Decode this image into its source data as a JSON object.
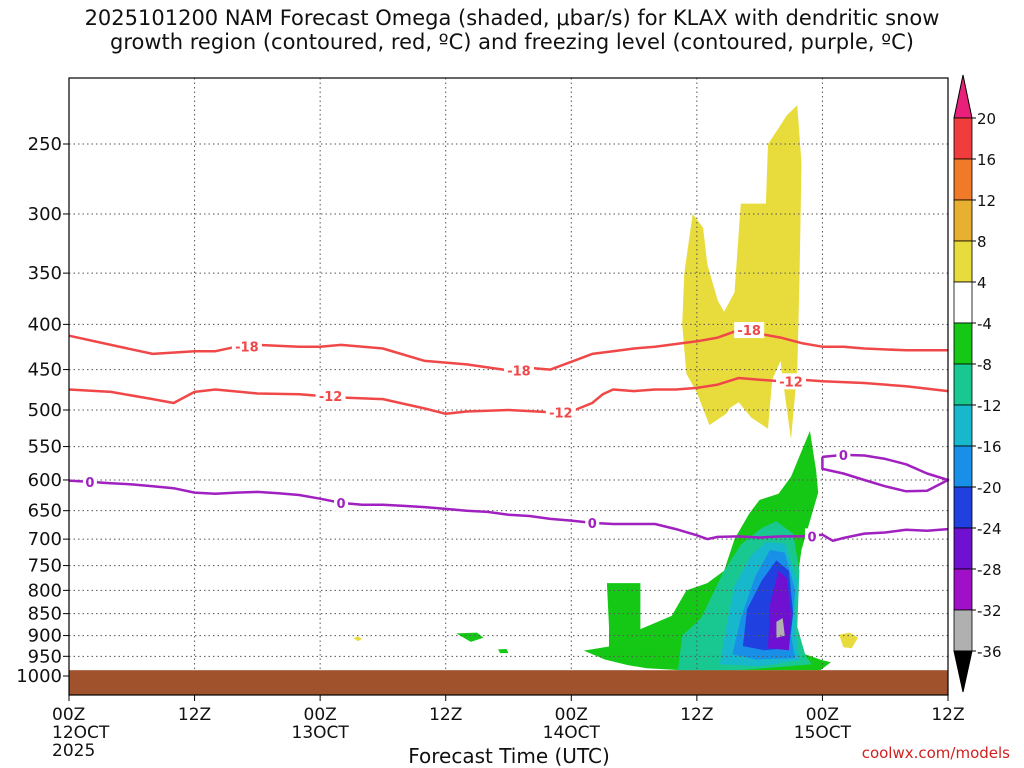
{
  "header": {
    "title": "2025101200 NAM Forecast Omega (shaded, μbar/s) for KLAX with dendritic snow\ngrowth region (contoured, red, ºC) and freezing level (contoured, purple, ºC)"
  },
  "footer": {
    "credit": "coolwx.com/models"
  },
  "chart_data": {
    "type": "area",
    "title": "2025101200 NAM Forecast Omega (shaded, μbar/s) for KLAX with dendritic snow growth region (contoured, red, ºC) and freezing level (contoured, purple, ºC)",
    "xlabel": "Forecast Time (UTC)",
    "ylabel": "",
    "xlim": [
      0,
      84
    ],
    "ylim": [
      1000,
      200
    ],
    "x_ticks": [
      {
        "value": 0,
        "lines": [
          "00Z",
          "12OCT",
          "2025"
        ]
      },
      {
        "value": 12,
        "lines": [
          "12Z"
        ]
      },
      {
        "value": 24,
        "lines": [
          "00Z",
          "13OCT"
        ]
      },
      {
        "value": 36,
        "lines": [
          "12Z"
        ]
      },
      {
        "value": 48,
        "lines": [
          "00Z",
          "14OCT"
        ]
      },
      {
        "value": 60,
        "lines": [
          "12Z"
        ]
      },
      {
        "value": 72,
        "lines": [
          "00Z",
          "15OCT"
        ]
      },
      {
        "value": 84,
        "lines": [
          "12Z"
        ]
      }
    ],
    "y_ticks": [
      250,
      300,
      350,
      400,
      450,
      500,
      550,
      600,
      650,
      700,
      750,
      800,
      850,
      900,
      950,
      1000
    ],
    "grid": true,
    "colorbar": {
      "labels": [
        "20",
        "16",
        "12",
        "8",
        "4",
        "-4",
        "-8",
        "-12",
        "-16",
        "-20",
        "-24",
        "-28",
        "-32",
        "-36"
      ],
      "colors": [
        "#e8207a",
        "#f03c3c",
        "#f07a28",
        "#e8b030",
        "#e8dc3c",
        "#ffffff",
        "#16c816",
        "#18c890",
        "#18b8cc",
        "#1890e8",
        "#2040e0",
        "#7010d0",
        "#a010c8",
        "#b0b0b0",
        "#000000"
      ]
    },
    "ground": {
      "color": "#a0522d",
      "pressure_top": 985
    },
    "series": [
      {
        "name": "-18",
        "kind": "temperature",
        "color": "#f04848",
        "x": [
          0,
          4,
          8,
          12,
          14,
          16,
          18,
          22,
          24,
          26,
          30,
          34,
          38,
          42,
          44,
          46,
          48,
          50,
          52,
          54,
          56,
          60,
          62,
          64,
          66,
          68,
          70,
          72,
          74,
          76,
          80,
          84
        ],
        "y": [
          412,
          422,
          432,
          429,
          429,
          424,
          422,
          424,
          424,
          422,
          426,
          440,
          444,
          451,
          448,
          450,
          441,
          432,
          429,
          426,
          424,
          418,
          414,
          406,
          410,
          414,
          420,
          424,
          424,
          426,
          428,
          428
        ],
        "labels": [
          {
            "x": 17,
            "text": "-18"
          },
          {
            "x": 43,
            "text": "-18"
          },
          {
            "x": 65,
            "text": "-18"
          }
        ]
      },
      {
        "name": "-12",
        "kind": "temperature",
        "color": "#f04848",
        "x": [
          0,
          4,
          8,
          10,
          12,
          14,
          18,
          22,
          24,
          26,
          30,
          34,
          36,
          38,
          42,
          46,
          48,
          50,
          51,
          52,
          54,
          56,
          58,
          60,
          62,
          64,
          66,
          68,
          70,
          72,
          76,
          80,
          84
        ],
        "y": [
          474,
          477,
          486,
          491,
          477,
          474,
          479,
          480,
          482,
          484,
          486,
          498,
          505,
          502,
          500,
          503,
          502,
          491,
          480,
          474,
          476,
          474,
          474,
          472,
          468,
          460,
          462,
          464,
          462,
          464,
          466,
          470,
          476
        ],
        "labels": [
          {
            "x": 25,
            "text": "-12"
          },
          {
            "x": 47,
            "text": "-12"
          },
          {
            "x": 69,
            "text": "-12"
          }
        ]
      },
      {
        "name": "0",
        "kind": "freezing",
        "color": "#a020c0",
        "x": [
          0,
          2,
          4,
          6,
          8,
          10,
          12,
          14,
          16,
          18,
          20,
          22,
          24,
          26,
          28,
          30,
          32,
          34,
          36,
          38,
          40,
          42,
          44,
          46,
          48,
          50,
          52,
          54,
          56,
          58,
          60,
          61,
          62,
          64,
          66,
          68,
          70,
          72,
          73,
          74,
          76,
          78,
          80,
          82,
          84
        ],
        "y": [
          601,
          603,
          605,
          607,
          610,
          613,
          620,
          622,
          620,
          619,
          621,
          624,
          630,
          637,
          640,
          640,
          642,
          644,
          647,
          650,
          652,
          657,
          659,
          664,
          667,
          671,
          673,
          673,
          673,
          682,
          693,
          700,
          696,
          695,
          697,
          695,
          695,
          692,
          703,
          698,
          690,
          688,
          683,
          685,
          682
        ],
        "labels": [
          {
            "x": 2,
            "text": "0"
          },
          {
            "x": 26,
            "text": "0"
          },
          {
            "x": 50,
            "text": "0"
          },
          {
            "x": 71,
            "text": "0"
          }
        ]
      },
      {
        "name": "0-upper",
        "kind": "freezing",
        "color": "#a020c0",
        "x": [
          72,
          74,
          76,
          78,
          80,
          82,
          84,
          82,
          80,
          78,
          76,
          74,
          72,
          72
        ],
        "y": [
          565,
          562,
          563,
          568,
          576,
          590,
          600,
          617,
          618,
          610,
          600,
          590,
          583,
          565
        ],
        "labels": [
          {
            "x": 74,
            "text": "0"
          }
        ]
      }
    ]
  }
}
